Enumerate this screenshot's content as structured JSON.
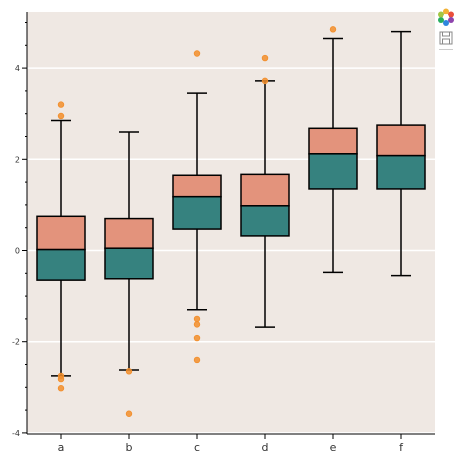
{
  "chart_data": {
    "type": "box",
    "categories": [
      "a",
      "b",
      "c",
      "d",
      "e",
      "f"
    ],
    "ylim": [
      -4,
      5.3
    ],
    "yticks": [
      -4,
      -2,
      0,
      2,
      4
    ],
    "ytick_labels": [
      "-4",
      "-2",
      "0",
      "2",
      "4"
    ],
    "grid": "horizontal",
    "boxes": [
      {
        "category": "a",
        "q1": -0.65,
        "median": 0.02,
        "q3": 0.75,
        "whisker_low": -2.75,
        "whisker_high": 2.85,
        "outliers": [
          3.2,
          2.95,
          -2.75,
          -2.82,
          -3.02
        ]
      },
      {
        "category": "b",
        "q1": -0.62,
        "median": 0.05,
        "q3": 0.7,
        "whisker_low": -2.62,
        "whisker_high": 2.6,
        "outliers": [
          -2.65,
          -3.58
        ]
      },
      {
        "category": "c",
        "q1": 0.47,
        "median": 1.18,
        "q3": 1.65,
        "whisker_low": -1.3,
        "whisker_high": 3.45,
        "outliers": [
          4.32,
          -1.5,
          -1.62,
          -1.92,
          -2.4
        ]
      },
      {
        "category": "d",
        "q1": 0.32,
        "median": 0.98,
        "q3": 1.67,
        "whisker_low": -1.68,
        "whisker_high": 3.72,
        "outliers": [
          4.22,
          3.72
        ]
      },
      {
        "category": "e",
        "q1": 1.35,
        "median": 2.12,
        "q3": 2.68,
        "whisker_low": -0.48,
        "whisker_high": 4.65,
        "outliers": [
          4.85
        ]
      },
      {
        "category": "f",
        "q1": 1.35,
        "median": 2.08,
        "q3": 2.75,
        "whisker_low": -0.55,
        "whisker_high": 4.8,
        "outliers": []
      }
    ],
    "colors": {
      "upper_box": "#e3937c",
      "lower_box": "#36827f",
      "outlier": "#f28e2b",
      "background": "#efe8e3",
      "grid": "#ffffff",
      "outline": "#000000"
    }
  },
  "toolbar": {
    "icons": [
      "bokeh-logo-icon",
      "save-icon"
    ]
  }
}
